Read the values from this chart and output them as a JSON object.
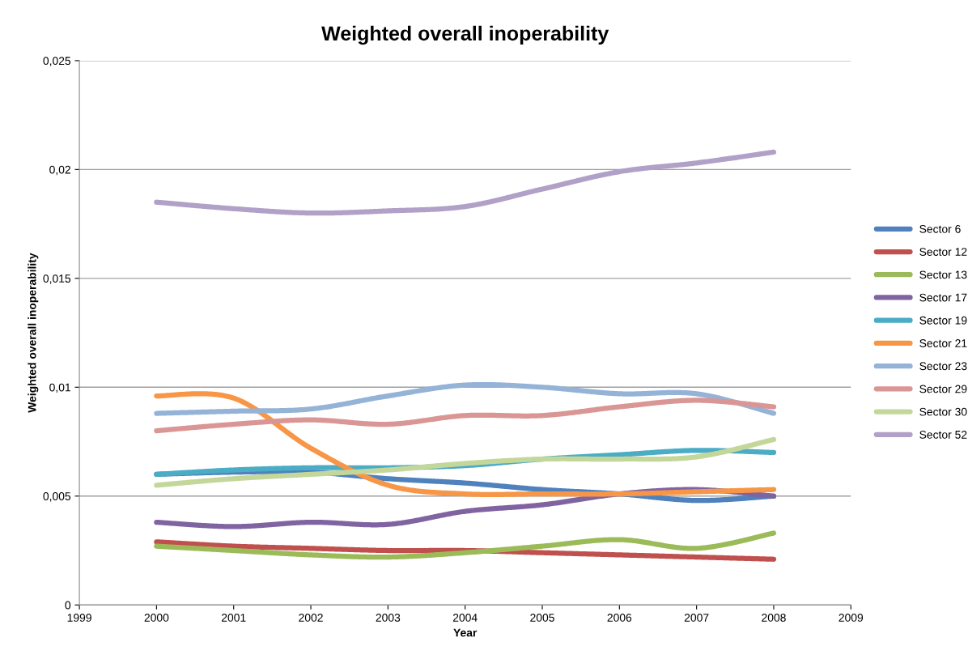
{
  "chart_data": {
    "type": "line",
    "title": "Weighted overall inoperability",
    "xlabel": "Year",
    "ylabel": "Weighted overall inoperability",
    "x": [
      2000,
      2001,
      2002,
      2003,
      2004,
      2005,
      2006,
      2007,
      2008
    ],
    "series": [
      {
        "name": "Sector 6",
        "color": "#4f81bd",
        "values": [
          0.006,
          0.0061,
          0.0061,
          0.0058,
          0.0056,
          0.0053,
          0.0051,
          0.0048,
          0.005
        ]
      },
      {
        "name": "Sector 12",
        "color": "#c0504d",
        "values": [
          0.0029,
          0.0027,
          0.0026,
          0.0025,
          0.0025,
          0.0024,
          0.0023,
          0.0022,
          0.0021
        ]
      },
      {
        "name": "Sector 13",
        "color": "#9bbb59",
        "values": [
          0.0027,
          0.0025,
          0.0023,
          0.0022,
          0.0024,
          0.0027,
          0.003,
          0.0026,
          0.0033
        ]
      },
      {
        "name": "Sector 17",
        "color": "#8064a2",
        "values": [
          0.0038,
          0.0036,
          0.0038,
          0.0037,
          0.0043,
          0.0046,
          0.0051,
          0.0053,
          0.005
        ]
      },
      {
        "name": "Sector 19",
        "color": "#4bacc6",
        "values": [
          0.006,
          0.0062,
          0.0063,
          0.0063,
          0.0064,
          0.0067,
          0.0069,
          0.0071,
          0.007
        ]
      },
      {
        "name": "Sector 21",
        "color": "#f79646",
        "values": [
          0.0096,
          0.0095,
          0.0072,
          0.0055,
          0.0051,
          0.0051,
          0.0051,
          0.0052,
          0.0053
        ]
      },
      {
        "name": "Sector 23",
        "color": "#95b3d7",
        "values": [
          0.0088,
          0.0089,
          0.009,
          0.0096,
          0.0101,
          0.01,
          0.0097,
          0.0097,
          0.0088
        ]
      },
      {
        "name": "Sector 29",
        "color": "#da9694",
        "values": [
          0.008,
          0.0083,
          0.0085,
          0.0083,
          0.0087,
          0.0087,
          0.0091,
          0.0094,
          0.0091
        ]
      },
      {
        "name": "Sector 30",
        "color": "#c4d79b",
        "values": [
          0.0055,
          0.0058,
          0.006,
          0.0062,
          0.0065,
          0.0067,
          0.0067,
          0.0068,
          0.0076
        ]
      },
      {
        "name": "Sector 52",
        "color": "#b1a0c7",
        "values": [
          0.0185,
          0.0182,
          0.018,
          0.0181,
          0.0183,
          0.0191,
          0.0199,
          0.0203,
          0.0208
        ]
      }
    ],
    "xlim": [
      1999,
      2009
    ],
    "xticks": [
      1999,
      2000,
      2001,
      2002,
      2003,
      2004,
      2005,
      2006,
      2007,
      2008,
      2009
    ],
    "ylim": [
      0,
      0.025
    ],
    "yticks": [
      0,
      {
        "value": 0.005,
        "label": "0,005"
      },
      {
        "value": 0.01,
        "label": "0,01"
      },
      {
        "value": 0.015,
        "label": "0,015"
      },
      {
        "value": 0.02,
        "label": "0,02"
      },
      {
        "value": 0.025,
        "label": "0,025"
      }
    ],
    "grid": "y",
    "legend": "right",
    "marker": "none",
    "line_style": "solid"
  }
}
